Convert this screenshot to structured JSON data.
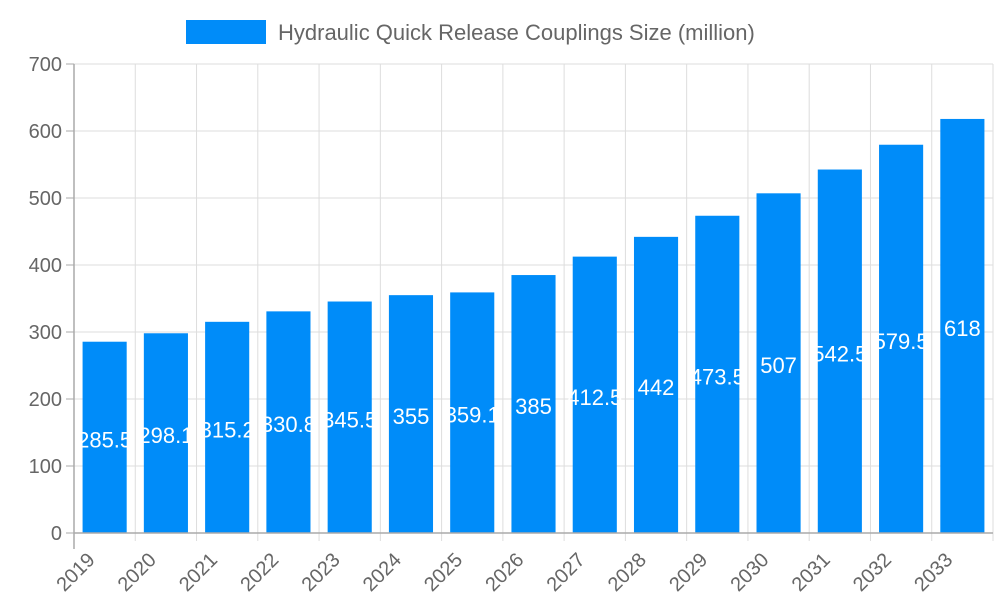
{
  "legend": {
    "label": "Hydraulic Quick Release Couplings Size (million)",
    "color": "#008cf9"
  },
  "colors": {
    "bar": "#008cf9",
    "grid": "#dddddd",
    "axis": "#aaaaaa",
    "text": "#666666",
    "label": "#ffffff"
  },
  "chart_data": {
    "type": "bar",
    "title": "",
    "xlabel": "",
    "ylabel": "",
    "categories": [
      "2019",
      "2020",
      "2021",
      "2022",
      "2023",
      "2024",
      "2025",
      "2026",
      "2027",
      "2028",
      "2029",
      "2030",
      "2031",
      "2032",
      "2033"
    ],
    "series": [
      {
        "name": "Hydraulic Quick Release Couplings Size (million)",
        "values": [
          285.5,
          298.1,
          315.2,
          330.8,
          345.5,
          355,
          359.1,
          385,
          412.5,
          442,
          473.5,
          507,
          542.5,
          579.5,
          618
        ]
      }
    ],
    "value_labels": [
      "285.5",
      "298.1",
      "315.2",
      "330.8",
      "345.5",
      "355",
      "359.1",
      "385",
      "412.5",
      "442",
      "473.5",
      "507",
      "542.5",
      "579.5",
      "618"
    ],
    "ylim": [
      0,
      700
    ],
    "yticks": [
      0,
      100,
      200,
      300,
      400,
      500,
      600,
      700
    ],
    "grid": true,
    "legend_position": "top"
  }
}
